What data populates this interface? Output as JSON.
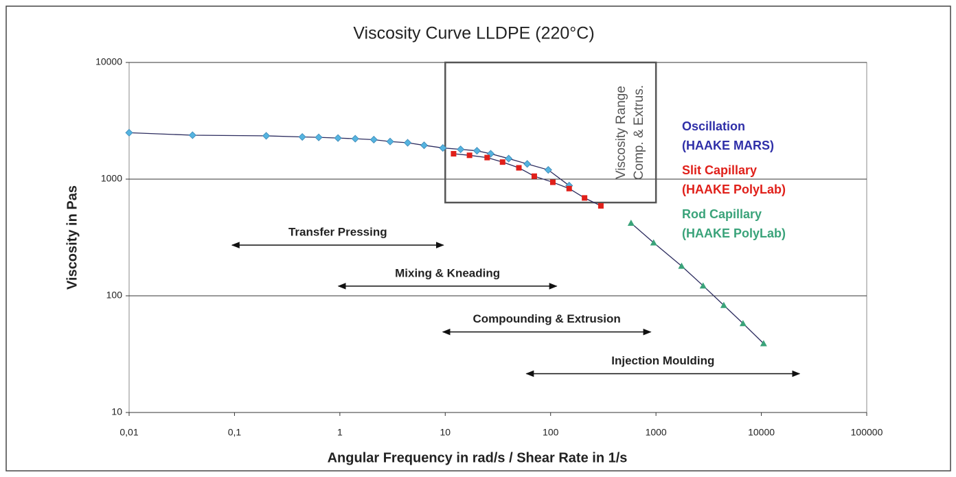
{
  "chart_data": {
    "type": "line",
    "title": "Viscosity Curve  LLDPE  (220°C)",
    "xlabel": "Angular Frequency in rad/s / Shear Rate in 1/s",
    "ylabel": "Viscosity in Pas",
    "xscale": "log",
    "yscale": "log",
    "xlim": [
      0.01,
      100000
    ],
    "ylim": [
      10,
      10000
    ],
    "xticks": [
      {
        "value": 0.01,
        "label": "0,01"
      },
      {
        "value": 0.1,
        "label": "0,1"
      },
      1,
      10,
      100,
      1000,
      10000,
      100000
    ],
    "yticks": [
      10,
      100,
      1000,
      10000
    ],
    "grid": "y",
    "line_color": "#2b2b5e",
    "series": [
      {
        "name": "Oscillation",
        "instrument": "(HAAKE MARS)",
        "color": "#55b4e0",
        "legend_color": "#2f2fa8",
        "marker": "diamond",
        "x": [
          0.01,
          0.04,
          0.2,
          0.44,
          0.63,
          0.96,
          1.4,
          2.1,
          3,
          4.4,
          6.3,
          9.5,
          14,
          20,
          27,
          40,
          60,
          95,
          150
        ],
        "values": [
          2500,
          2380,
          2350,
          2300,
          2280,
          2250,
          2220,
          2180,
          2100,
          2050,
          1950,
          1850,
          1800,
          1750,
          1650,
          1500,
          1350,
          1200,
          880
        ]
      },
      {
        "name": "Slit Capillary",
        "instrument": "(HAAKE PolyLab)",
        "color": "#e0201a",
        "legend_color": "#e0201a",
        "marker": "square",
        "x": [
          12,
          17,
          25,
          35,
          50,
          70,
          105,
          150,
          210,
          300
        ],
        "values": [
          1650,
          1600,
          1530,
          1400,
          1250,
          1060,
          940,
          830,
          690,
          590
        ]
      },
      {
        "name": "Rod Capillary",
        "instrument": "(HAAKE PolyLab)",
        "color": "#3aa37a",
        "legend_color": "#3aa37a",
        "marker": "triangle",
        "x": [
          580,
          950,
          1750,
          2800,
          4400,
          6700,
          10500
        ],
        "values": [
          420,
          285,
          180,
          122,
          83,
          58,
          39
        ]
      }
    ],
    "box": {
      "x": [
        10,
        1000
      ],
      "y": [
        630,
        10000
      ],
      "label_lines": [
        "Viscosity Range",
        "Comp. & Extrus."
      ]
    },
    "annotations": [
      {
        "text": "Transfer Pressing",
        "x": [
          0.095,
          9.6
        ],
        "y": 272
      },
      {
        "text": "Mixing & Kneading",
        "x": [
          0.97,
          114
        ],
        "y": 121
      },
      {
        "text": "Compounding & Extrusion",
        "x": [
          9.5,
          890
        ],
        "y": 49
      },
      {
        "text": "Injection Moulding",
        "x": [
          59,
          23000
        ],
        "y": 21.5
      }
    ]
  }
}
